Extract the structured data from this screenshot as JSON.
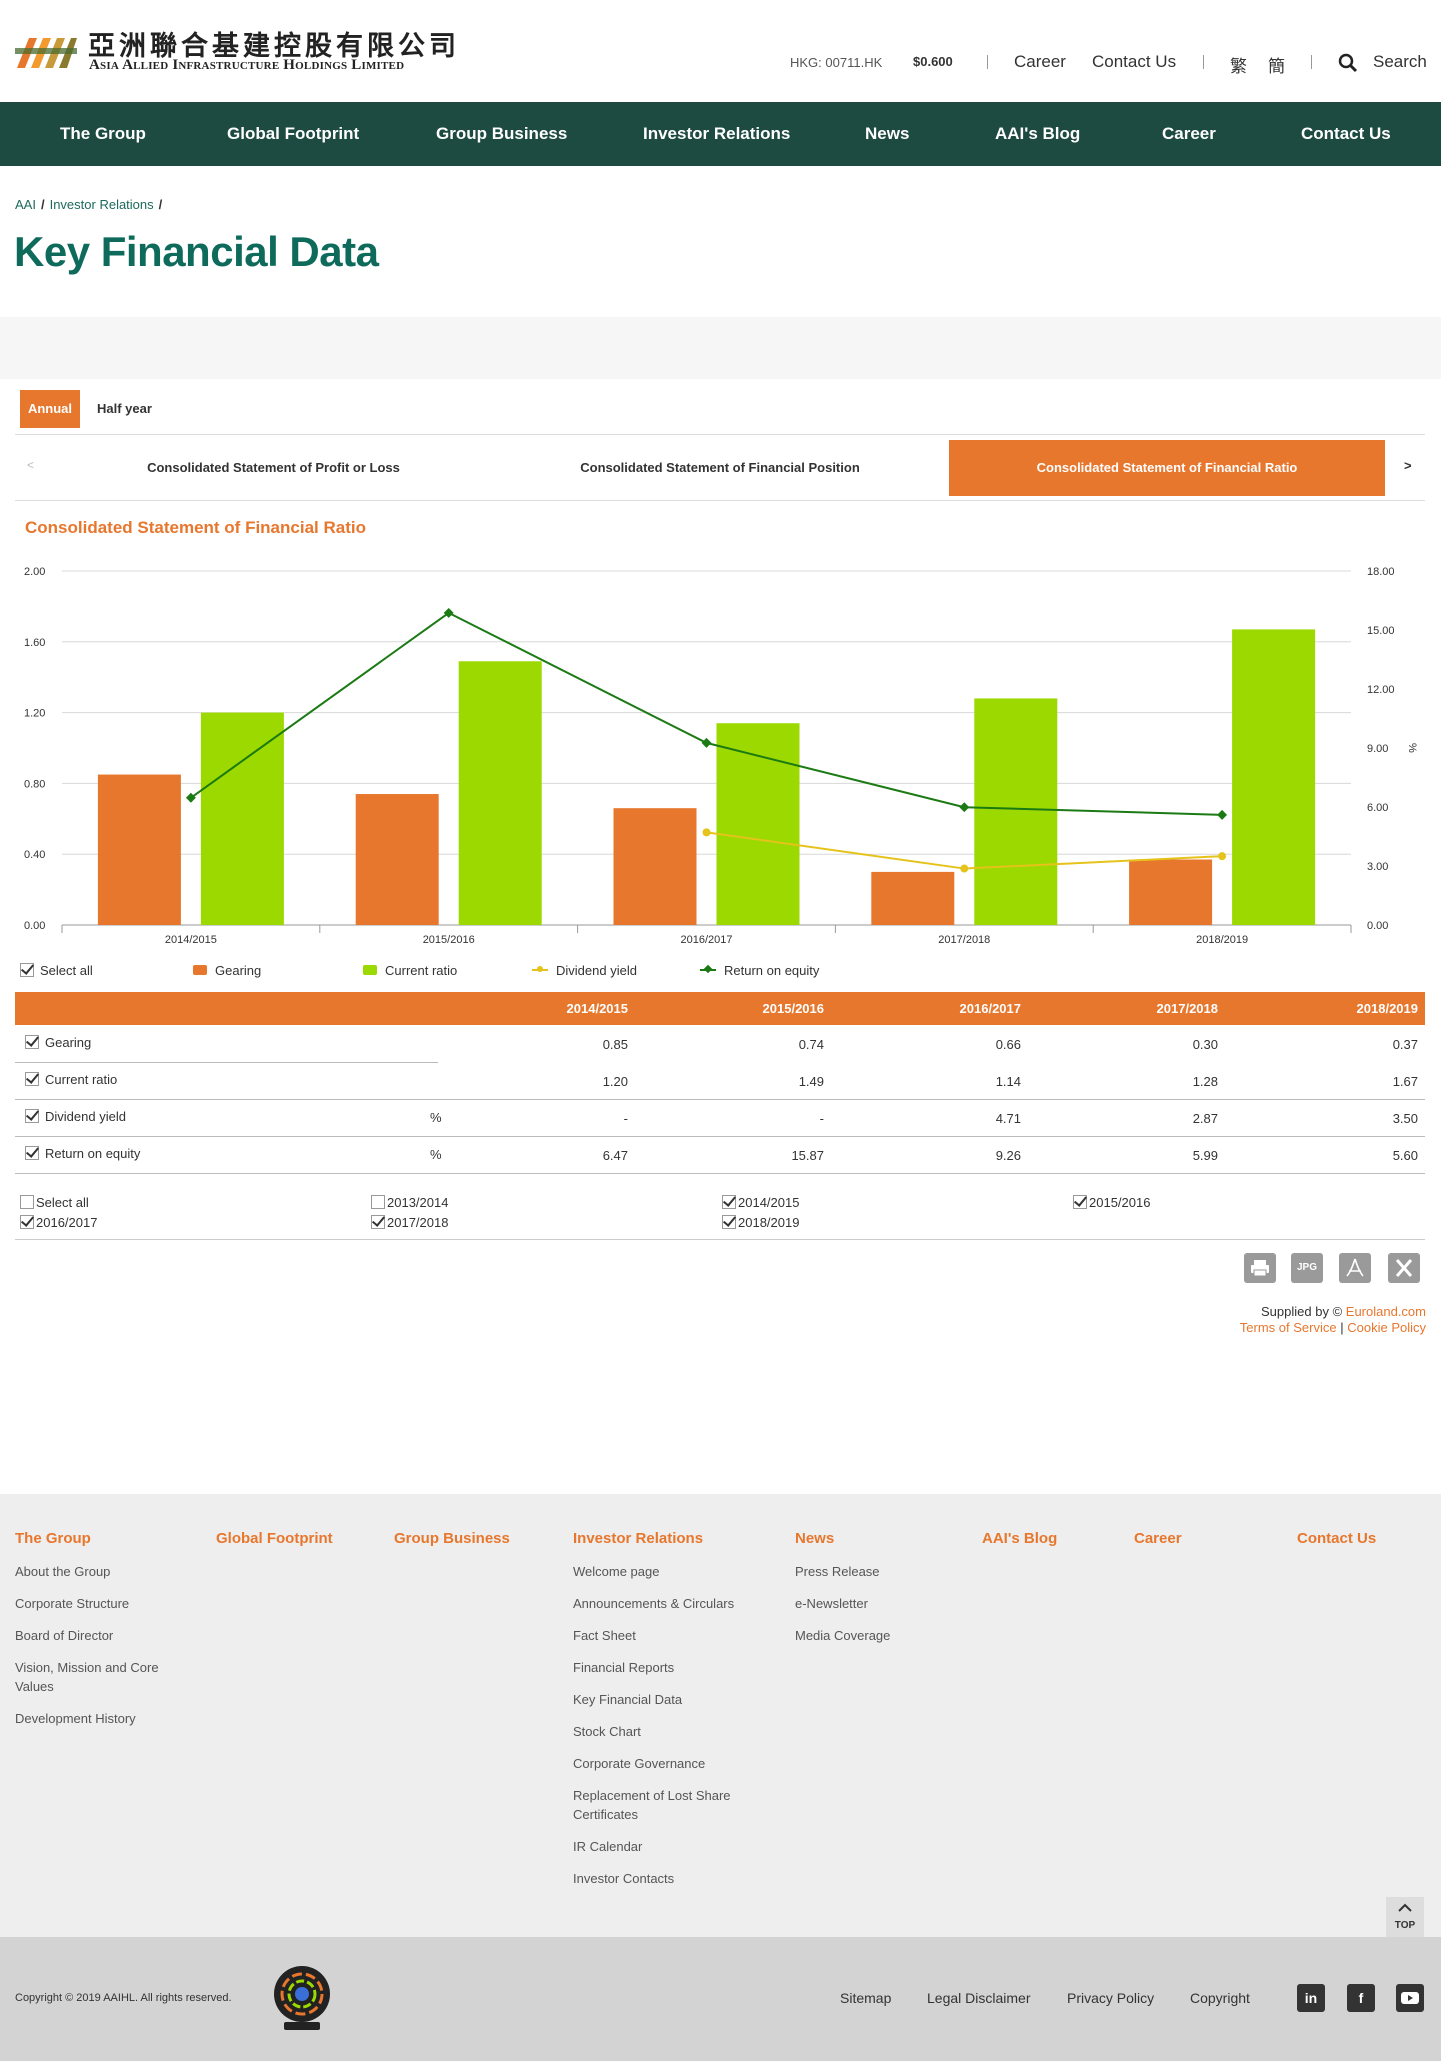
{
  "brand": {
    "name_cn": "亞洲聯合基建控股有限公司",
    "name_en": "Asia Allied Infrastructure Holdings Limited",
    "accent": "#e8772e",
    "nav_bg": "#1d4a41",
    "title_color": "#0e6b5b"
  },
  "header": {
    "ticker": "HKG: 00711.HK",
    "price": "$0.600",
    "career": "Career",
    "contact": "Contact Us",
    "lang_tc": "繁",
    "lang_sc": "簡",
    "search": "Search",
    "search_icon": "search-icon"
  },
  "nav": [
    "The Group",
    "Global Footprint",
    "Group Business",
    "Investor Relations",
    "News",
    "AAI's Blog",
    "Career",
    "Contact Us"
  ],
  "breadcrumb": [
    "AAI",
    "Investor Relations"
  ],
  "page_title": "Key Financial Data",
  "period_tabs": {
    "annual": "Annual",
    "half": "Half year"
  },
  "statement_tabs": {
    "prev": "<",
    "next": ">",
    "items": [
      "Consolidated Statement of Profit or Loss",
      "Consolidated Statement of Financial Position",
      "Consolidated Statement of Financial Ratio"
    ],
    "active": 2
  },
  "chart_title": "Consolidated Statement of Financial Ratio",
  "chart_data": {
    "type": "bar",
    "categories": [
      "2014/2015",
      "2015/2016",
      "2016/2017",
      "2017/2018",
      "2018/2019"
    ],
    "series": [
      {
        "name": "Gearing",
        "kind": "bar",
        "axis": "left",
        "color": "#e8772e",
        "values": [
          0.85,
          0.74,
          0.66,
          0.3,
          0.37
        ]
      },
      {
        "name": "Current ratio",
        "kind": "bar",
        "axis": "left",
        "color": "#9bd900",
        "values": [
          1.2,
          1.49,
          1.14,
          1.28,
          1.67
        ]
      },
      {
        "name": "Dividend yield",
        "kind": "line",
        "axis": "right",
        "color": "#e5c31b",
        "values": [
          null,
          null,
          4.71,
          2.87,
          3.5
        ]
      },
      {
        "name": "Return on equity",
        "kind": "line",
        "axis": "right",
        "color": "#1b7a13",
        "values": [
          6.47,
          15.87,
          9.26,
          5.99,
          5.6
        ]
      }
    ],
    "y_left": {
      "min": 0,
      "max": 2.0,
      "ticks": [
        "0.00",
        "0.40",
        "0.80",
        "1.20",
        "1.60",
        "2.00"
      ]
    },
    "y_right": {
      "min": 0,
      "max": 18,
      "ticks": [
        "0.00",
        "3.00",
        "6.00",
        "9.00",
        "12.00",
        "15.00",
        "18.00"
      ],
      "unit": "%"
    },
    "grid": true,
    "legend": "bottom-left"
  },
  "legend": {
    "select_all": "Select all"
  },
  "table": {
    "years": [
      "2014/2015",
      "2015/2016",
      "2016/2017",
      "2017/2018",
      "2018/2019"
    ],
    "rows": [
      {
        "label": "Gearing",
        "unit": "",
        "values": [
          "0.85",
          "0.74",
          "0.66",
          "0.30",
          "0.37"
        ]
      },
      {
        "label": "Current ratio",
        "unit": "",
        "values": [
          "1.20",
          "1.49",
          "1.14",
          "1.28",
          "1.67"
        ]
      },
      {
        "label": "Dividend yield",
        "unit": "%",
        "values": [
          "-",
          "-",
          "4.71",
          "2.87",
          "3.50"
        ]
      },
      {
        "label": "Return on equity",
        "unit": "%",
        "values": [
          "6.47",
          "15.87",
          "9.26",
          "5.99",
          "5.60"
        ]
      }
    ]
  },
  "year_select": [
    {
      "label": "Select all",
      "checked": false
    },
    {
      "label": "2013/2014",
      "checked": false
    },
    {
      "label": "2014/2015",
      "checked": true
    },
    {
      "label": "2015/2016",
      "checked": true
    },
    {
      "label": "2016/2017",
      "checked": true
    },
    {
      "label": "2017/2018",
      "checked": true
    },
    {
      "label": "2018/2019",
      "checked": true
    }
  ],
  "tools": {
    "print_icon": "print-icon",
    "jpg": "JPG",
    "pdf_icon": "pdf-icon",
    "excel_icon": "excel-icon"
  },
  "supplied": {
    "prefix": "Supplied by ©",
    "provider": "Euroland.com",
    "terms": "Terms of Service",
    "sep": "|",
    "cookie": "Cookie Policy"
  },
  "footer": {
    "columns": [
      {
        "heading": "The Group",
        "items": [
          "About the Group",
          "Corporate Structure",
          "Board of Director",
          "Vision, Mission and Core Values",
          "Development History"
        ]
      },
      {
        "heading": "Global Footprint",
        "items": []
      },
      {
        "heading": "Group Business",
        "items": []
      },
      {
        "heading": "Investor Relations",
        "items": [
          "Welcome page",
          "Announcements & Circulars",
          "Fact Sheet",
          "Financial Reports",
          "Key Financial Data",
          "Stock Chart",
          "Corporate Governance",
          "Replacement of Lost Share Certificates",
          "IR Calendar",
          "Investor Contacts"
        ]
      },
      {
        "heading": "News",
        "items": [
          "Press Release",
          "e-Newsletter",
          "Media Coverage"
        ]
      },
      {
        "heading": "AAI's Blog",
        "items": []
      },
      {
        "heading": "Career",
        "items": []
      },
      {
        "heading": "Contact Us",
        "items": []
      }
    ],
    "top": "TOP",
    "copyright": "Copyright © 2019 AAIHL. All rights reserved.",
    "links": [
      "Sitemap",
      "Legal Disclaimer",
      "Privacy Policy",
      "Copyright"
    ],
    "social": [
      "linkedin-icon",
      "facebook-icon",
      "youtube-icon"
    ]
  }
}
